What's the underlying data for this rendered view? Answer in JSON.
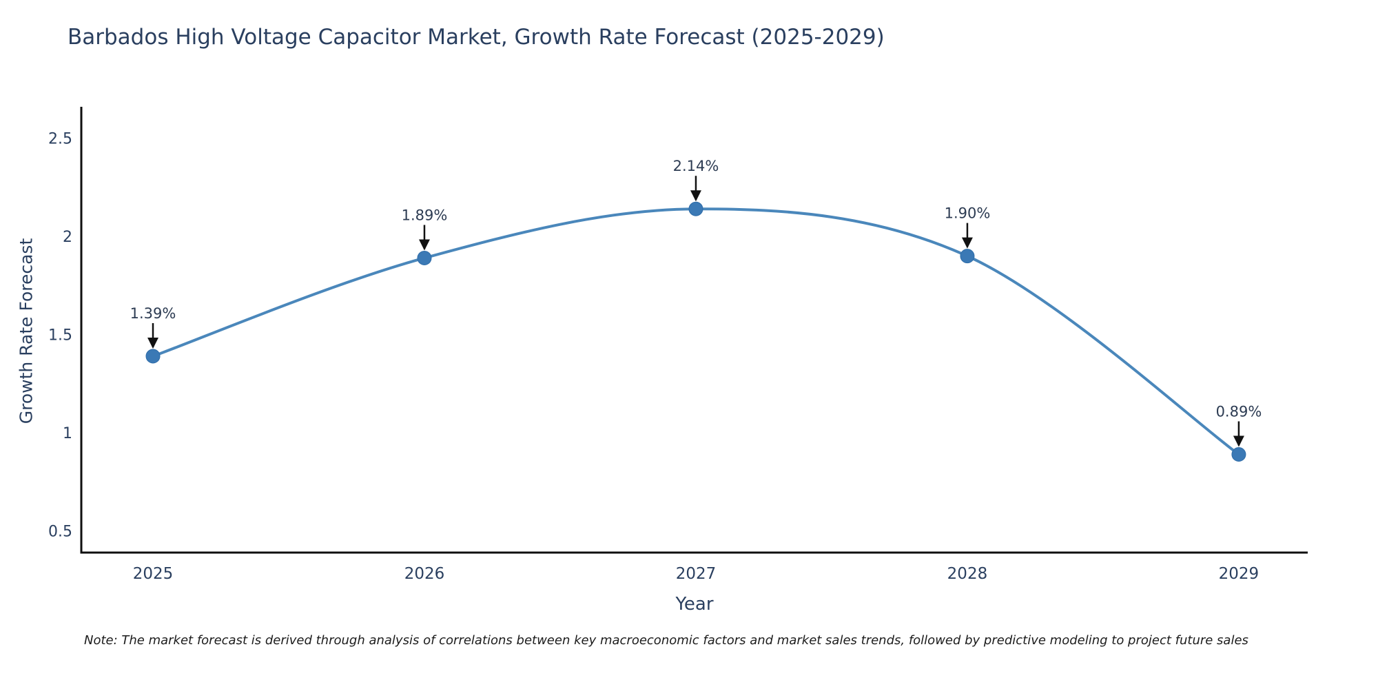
{
  "title": "Barbados High Voltage Capacitor Market, Growth Rate Forecast (2025-2029)",
  "note": "Note: The market forecast is derived through analysis of correlations between key macroeconomic factors and market sales trends, followed by predictive modeling to project future sales",
  "chart_data": {
    "type": "line",
    "title": "Barbados High Voltage Capacitor Market, Growth Rate Forecast (2025-2029)",
    "xlabel": "Year",
    "ylabel": "Growth Rate Forecast",
    "x": [
      2025,
      2026,
      2027,
      2028,
      2029
    ],
    "y": [
      1.39,
      1.89,
      2.14,
      1.9,
      0.89
    ],
    "point_labels": [
      "1.39%",
      "1.89%",
      "2.14%",
      "1.90%",
      "0.89%"
    ],
    "xticks": [
      "2025",
      "2026",
      "2027",
      "2028",
      "2029"
    ],
    "yticks": [
      0.5,
      1,
      1.5,
      2,
      2.5
    ],
    "ytick_labels": [
      "0.5",
      "1",
      "1.5",
      "2",
      "2.5"
    ],
    "xlim": [
      2024.736,
      2029.254
    ],
    "ylim": [
      0.39,
      2.66
    ],
    "grid": false,
    "line_shape": "spline",
    "legend": "none",
    "annotations_have_arrows": true,
    "colors": {
      "line": "#4a87bb",
      "marker": "#3b79b5",
      "marker_edge": "#2e6ca8",
      "arrow": "#111111",
      "axis_line": "#0f0f0f",
      "text": "#2a3f5f",
      "annotation_text": "#2c3b52",
      "note_text": "#1c1c1c",
      "background": "#ffffff"
    }
  }
}
